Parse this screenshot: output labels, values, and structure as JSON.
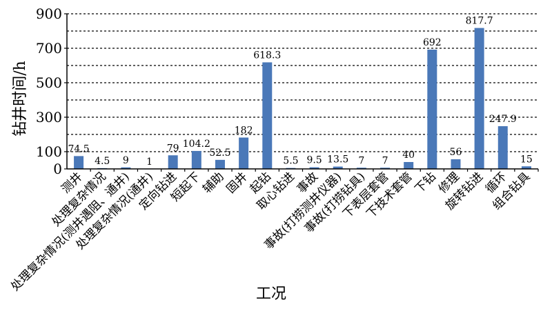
{
  "chart_data": {
    "type": "bar",
    "xlabel": "工况",
    "ylabel": "钻井时间/h",
    "ylim": [
      0,
      900
    ],
    "yticks": [
      0,
      100,
      300,
      500,
      700,
      900
    ],
    "grid": "horizontal-dashed",
    "bar_color": "#4a78b8",
    "categories": [
      "测井",
      "处理复杂情况",
      "处理复杂情况(测井遇阻、通井)",
      "处理复杂情况(通井)",
      "定向钻进",
      "短起下",
      "辅助",
      "固井",
      "起钻",
      "取心钻进",
      "事故",
      "事故(打捞测井仪器)",
      "事故(打捞钻具)",
      "下表层套管",
      "下技术套管",
      "下钻",
      "修理",
      "旋转钻进",
      "循环",
      "组合钻具"
    ],
    "values": [
      74.5,
      4.5,
      9,
      1,
      79,
      104.2,
      52.5,
      182,
      618.3,
      5.5,
      9.5,
      13.5,
      7,
      7,
      40,
      692,
      56,
      817.7,
      247.9,
      15
    ],
    "data_labels": [
      "74.5",
      "4.5",
      "9",
      "1",
      "79",
      "104.2",
      "52.5",
      "182",
      "618.3",
      "5.5",
      "9.5",
      "13.5",
      "7",
      "7",
      "40",
      "692",
      "56",
      "817.7",
      "247.9",
      "15"
    ]
  }
}
